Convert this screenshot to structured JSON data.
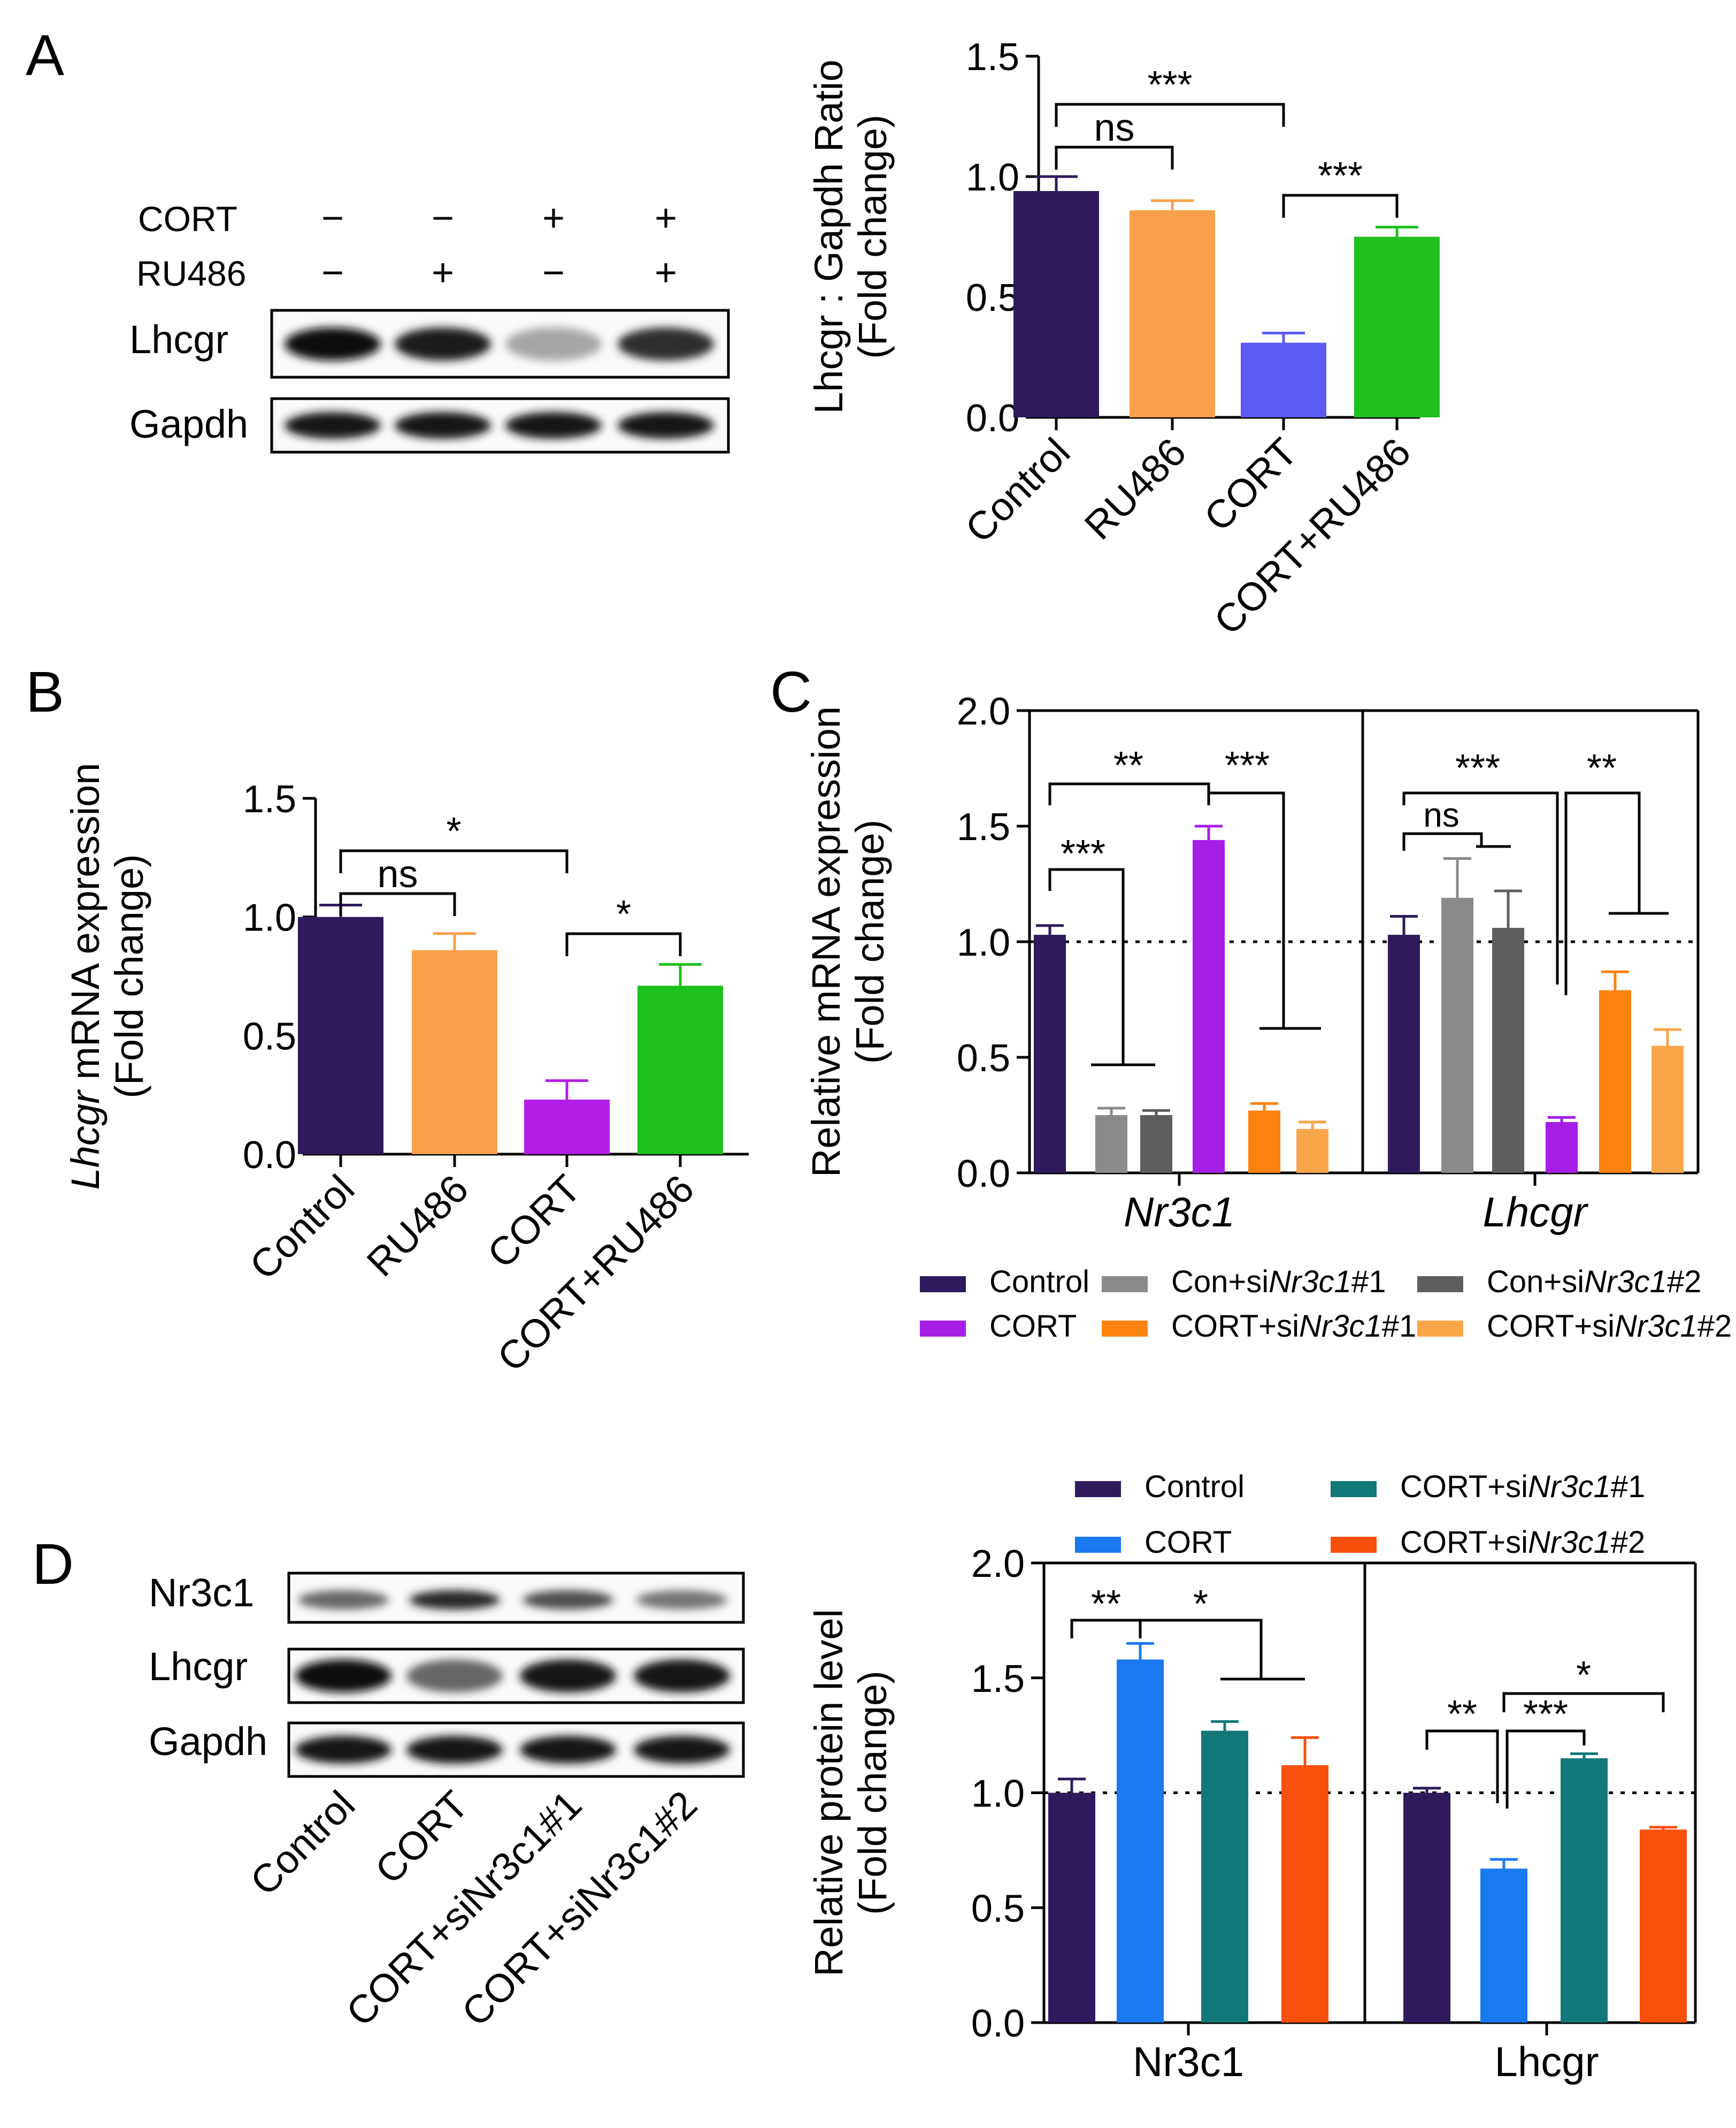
{
  "figure": {
    "panel_labels": [
      "A",
      "B",
      "C",
      "D"
    ],
    "blot_a": {
      "row_labels": [
        "CORT",
        "RU486"
      ],
      "signs": [
        [
          "−",
          "−",
          "+",
          "+"
        ],
        [
          "−",
          "+",
          "−",
          "+"
        ]
      ],
      "band_labels": [
        "Lhcgr",
        "Gapdh"
      ],
      "lhcgr_intensity": [
        0.95,
        0.88,
        0.35,
        0.82
      ],
      "gapdh_intensity": [
        0.92,
        0.92,
        0.92,
        0.92
      ]
    },
    "blot_d": {
      "band_labels": [
        "Nr3c1",
        "Lhcgr",
        "Gapdh"
      ],
      "lane_labels": [
        "Control",
        "CORT",
        "CORT+siNr3c1#1",
        "CORT+siNr3c1#2"
      ],
      "nr3c1_intensity": [
        0.6,
        0.85,
        0.7,
        0.55
      ],
      "lhcgr_intensity": [
        0.95,
        0.6,
        0.92,
        0.9
      ],
      "gapdh_intensity": [
        0.92,
        0.92,
        0.92,
        0.92
      ]
    }
  },
  "chart_data": [
    {
      "id": "A",
      "type": "bar",
      "title": "",
      "ylabel": "Lhcgr : Gapdh Ratio",
      "ylabel2": "(Fold change)",
      "ylim": [
        0,
        1.5
      ],
      "yticks": [
        "0.0",
        "0.5",
        "1.0",
        "1.5"
      ],
      "categories": [
        "Control",
        "RU486",
        "CORT",
        "CORT+RU486"
      ],
      "values": [
        0.94,
        0.86,
        0.31,
        0.75
      ],
      "errors": [
        0.06,
        0.04,
        0.04,
        0.04
      ],
      "colors": [
        "#2e1a5c",
        "#f9a04a",
        "#5a5af5",
        "#1ec01e"
      ],
      "significance": [
        {
          "from": 0,
          "to": 2,
          "label": "***"
        },
        {
          "from": 0,
          "to": 1,
          "label": "ns"
        },
        {
          "from": 2,
          "to": 3,
          "label": "***"
        }
      ]
    },
    {
      "id": "B",
      "type": "bar",
      "ylabel_italic": "Lhcgr",
      "ylabel_rest": " mRNA expression",
      "ylabel2": "(Fold change)",
      "ylim": [
        0,
        1.5
      ],
      "yticks": [
        "0.0",
        "0.5",
        "1.0",
        "1.5"
      ],
      "categories": [
        "Control",
        "RU486",
        "CORT",
        "CORT+RU486"
      ],
      "values": [
        1.0,
        0.86,
        0.23,
        0.71
      ],
      "errors": [
        0.05,
        0.07,
        0.08,
        0.09
      ],
      "colors": [
        "#2e1a5c",
        "#f9a04a",
        "#b21ee6",
        "#1ec01e"
      ],
      "significance": [
        {
          "from": 0,
          "to": 2,
          "label": "*"
        },
        {
          "from": 0,
          "to": 1,
          "label": "ns"
        },
        {
          "from": 2,
          "to": 3,
          "label": "*"
        }
      ]
    },
    {
      "id": "C",
      "type": "bar",
      "ylabel": "Relative mRNA expression",
      "ylabel2": "(Fold change)",
      "ylim": [
        0,
        2.0
      ],
      "yticks": [
        "0.0",
        "0.5",
        "1.0",
        "1.5",
        "2.0"
      ],
      "reference_line": 1.0,
      "groups": [
        "Nr3c1",
        "Lhcgr"
      ],
      "series": [
        {
          "name": "Control",
          "name_plain": "Control",
          "color": "#2e1a5c",
          "values": [
            1.03,
            1.03
          ],
          "errors": [
            0.04,
            0.08
          ]
        },
        {
          "name": "Con+siNr3c1#1",
          "name_pre": "Con+si",
          "name_it": "Nr3c1",
          "name_post": "#1",
          "color": "#8a8a8a",
          "values": [
            0.25,
            1.19
          ],
          "errors": [
            0.03,
            0.17
          ]
        },
        {
          "name": "Con+siNr3c1#2",
          "name_pre": "Con+si",
          "name_it": "Nr3c1",
          "name_post": "#2",
          "color": "#5e5e5e",
          "values": [
            0.25,
            1.06
          ],
          "errors": [
            0.02,
            0.16
          ]
        },
        {
          "name": "CORT",
          "name_plain": "CORT",
          "color": "#a61ee6",
          "values": [
            1.44,
            0.22
          ],
          "errors": [
            0.06,
            0.02
          ]
        },
        {
          "name": "CORT+siNr3c1#1",
          "name_pre": "CORT+si",
          "name_it": "Nr3c1",
          "name_post": "#1",
          "color": "#f9830e",
          "values": [
            0.27,
            0.79
          ],
          "errors": [
            0.03,
            0.08
          ]
        },
        {
          "name": "CORT+siNr3c1#2",
          "name_pre": "CORT+si",
          "name_it": "Nr3c1",
          "name_post": "#2",
          "color": "#f9a64a",
          "values": [
            0.19,
            0.55
          ],
          "errors": [
            0.03,
            0.07
          ]
        }
      ],
      "significance_labels": [
        "**",
        "***",
        "***",
        "***",
        "**",
        "ns"
      ]
    },
    {
      "id": "D",
      "type": "bar",
      "ylabel": "Relative protein level",
      "ylabel2": "(Fold change)",
      "ylim": [
        0,
        2.0
      ],
      "yticks": [
        "0.0",
        "0.5",
        "1.0",
        "1.5",
        "2.0"
      ],
      "reference_line": 1.0,
      "groups": [
        "Nr3c1",
        "Lhcgr"
      ],
      "series": [
        {
          "name": "Control",
          "name_plain": "Control",
          "color": "#2e1a5c",
          "values": [
            1.0,
            1.0
          ],
          "errors": [
            0.06,
            0.02
          ]
        },
        {
          "name": "CORT",
          "name_plain": "CORT",
          "color": "#1a78f0",
          "values": [
            1.58,
            0.67
          ],
          "errors": [
            0.07,
            0.04
          ]
        },
        {
          "name": "CORT+siNr3c1#1",
          "name_pre": "CORT+si",
          "name_it": "Nr3c1",
          "name_post": "#1",
          "color": "#127878",
          "values": [
            1.27,
            1.15
          ],
          "errors": [
            0.04,
            0.02
          ]
        },
        {
          "name": "CORT+siNr3c1#2",
          "name_pre": "CORT+si",
          "name_it": "Nr3c1",
          "name_post": "#2",
          "color": "#f9500e",
          "values": [
            1.12,
            0.84
          ],
          "errors": [
            0.12,
            0.01
          ]
        }
      ],
      "significance_labels": [
        "**",
        "*",
        "**",
        "***",
        "*"
      ]
    }
  ]
}
